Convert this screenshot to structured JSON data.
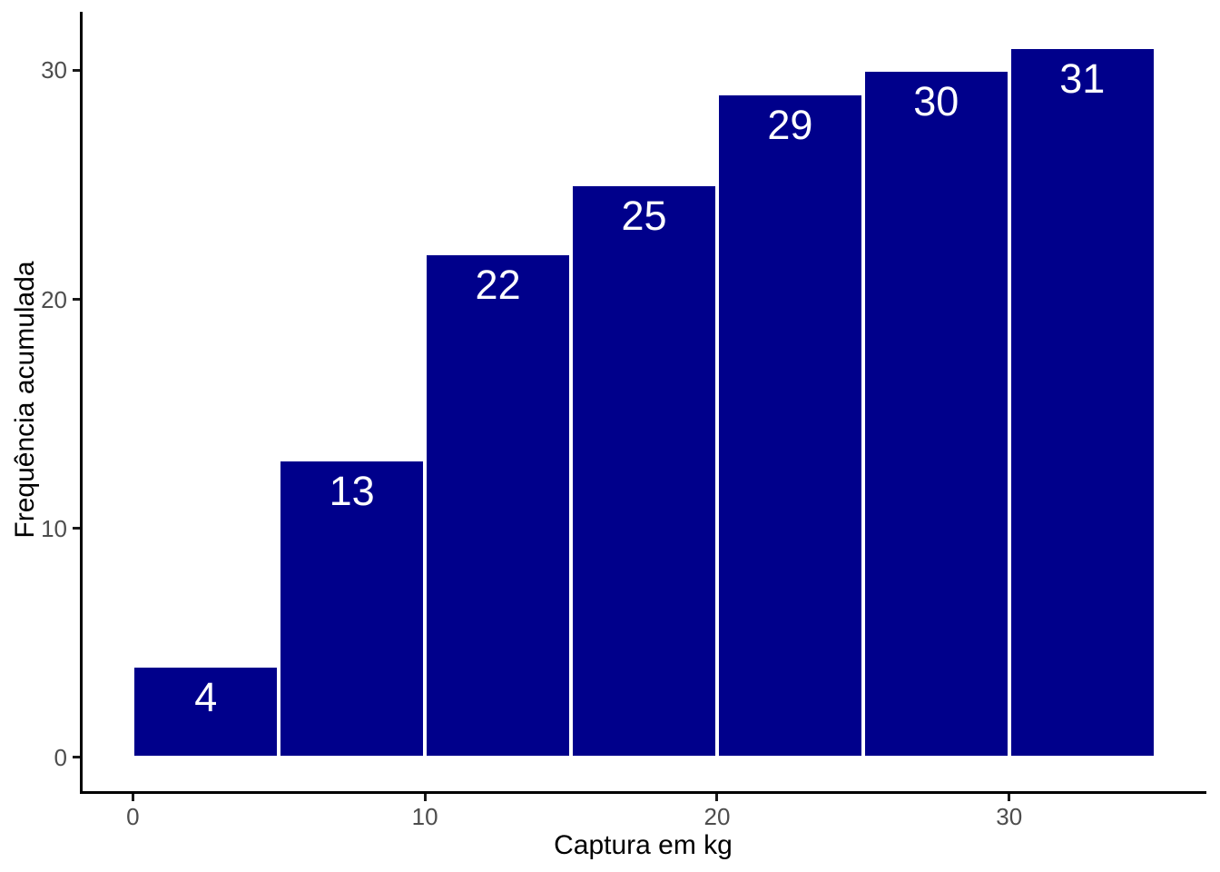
{
  "chart_data": {
    "type": "bar",
    "subtype": "cumulative-frequency-histogram",
    "title": "",
    "xlabel": "Captura em kg",
    "ylabel": "Frequência acumulada",
    "bins": [
      {
        "x0": 0,
        "x1": 5,
        "count": 4
      },
      {
        "x0": 5,
        "x1": 10,
        "count": 13
      },
      {
        "x0": 10,
        "x1": 15,
        "count": 22
      },
      {
        "x0": 15,
        "x1": 20,
        "count": 25
      },
      {
        "x0": 20,
        "x1": 25,
        "count": 29
      },
      {
        "x0": 25,
        "x1": 30,
        "count": 30
      },
      {
        "x0": 30,
        "x1": 35,
        "count": 31
      }
    ],
    "x_ticks": [
      0,
      10,
      20,
      30
    ],
    "y_ticks": [
      0,
      10,
      20,
      30
    ],
    "xlim": [
      -1.75,
      36.75
    ],
    "ylim": [
      -1.55,
      32.55
    ],
    "grid": false,
    "legend_position": "none",
    "colors": {
      "bar_fill": "#00008B",
      "bar_stroke": "#FFFFFF",
      "bar_label": "#FFFFFF",
      "tick_label": "#4D4D4D",
      "axis_line": "#000000",
      "axis_title": "#000000",
      "background": "#FFFFFF"
    }
  }
}
